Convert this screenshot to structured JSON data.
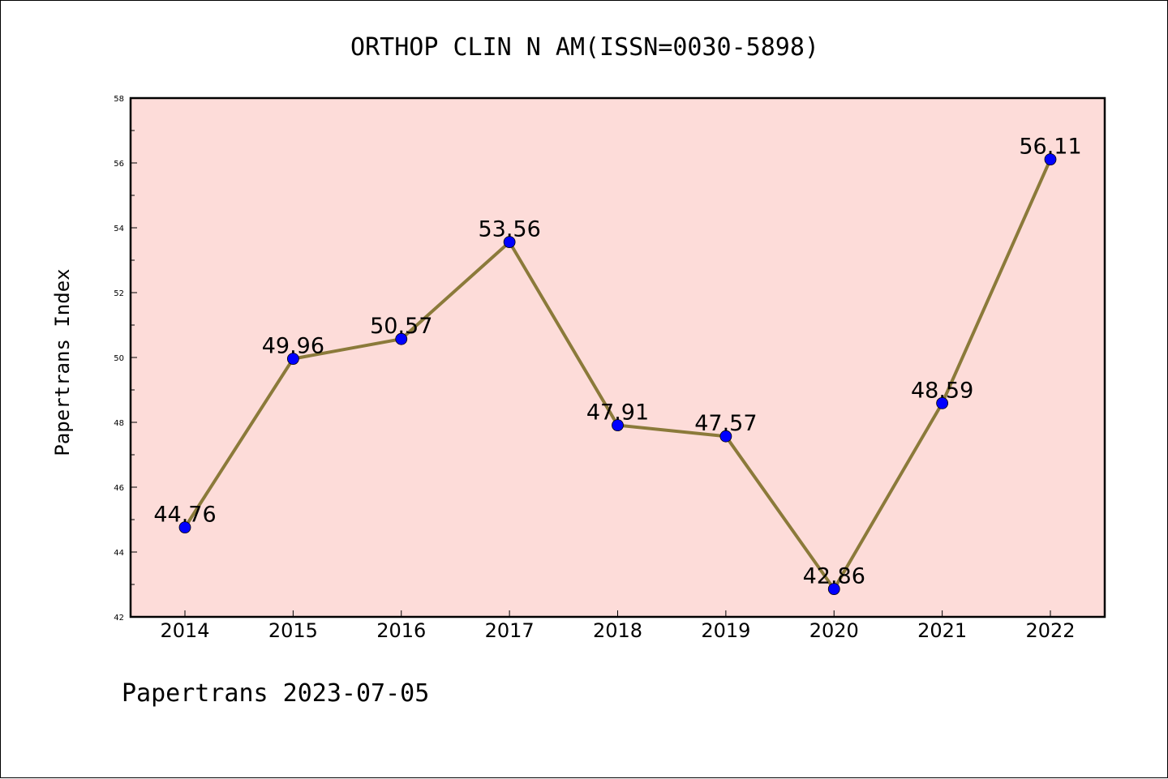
{
  "chart_data": {
    "type": "line",
    "title": "ORTHOP CLIN N AM(ISSN=0030-5898)",
    "ylabel": "Papertrans Index",
    "footer": "Papertrans 2023-07-05",
    "categories": [
      "2014",
      "2015",
      "2016",
      "2017",
      "2018",
      "2019",
      "2020",
      "2021",
      "2022"
    ],
    "values": [
      44.76,
      49.96,
      50.57,
      53.56,
      47.91,
      47.57,
      42.86,
      48.59,
      56.11
    ],
    "data_labels": [
      "44.76",
      "49.96",
      "50.57",
      "53.56",
      "47.91",
      "47.57",
      "42.86",
      "48.59",
      "56.11"
    ],
    "ylim": [
      42,
      58
    ],
    "y_ticks": [
      "42",
      "44",
      "46",
      "48",
      "50",
      "52",
      "54",
      "56",
      "58"
    ],
    "grid": false,
    "colors": {
      "plot_background": "#fddcd9",
      "line": "#8b7a3a",
      "marker": "#0000ff",
      "axis": "#000000"
    }
  }
}
